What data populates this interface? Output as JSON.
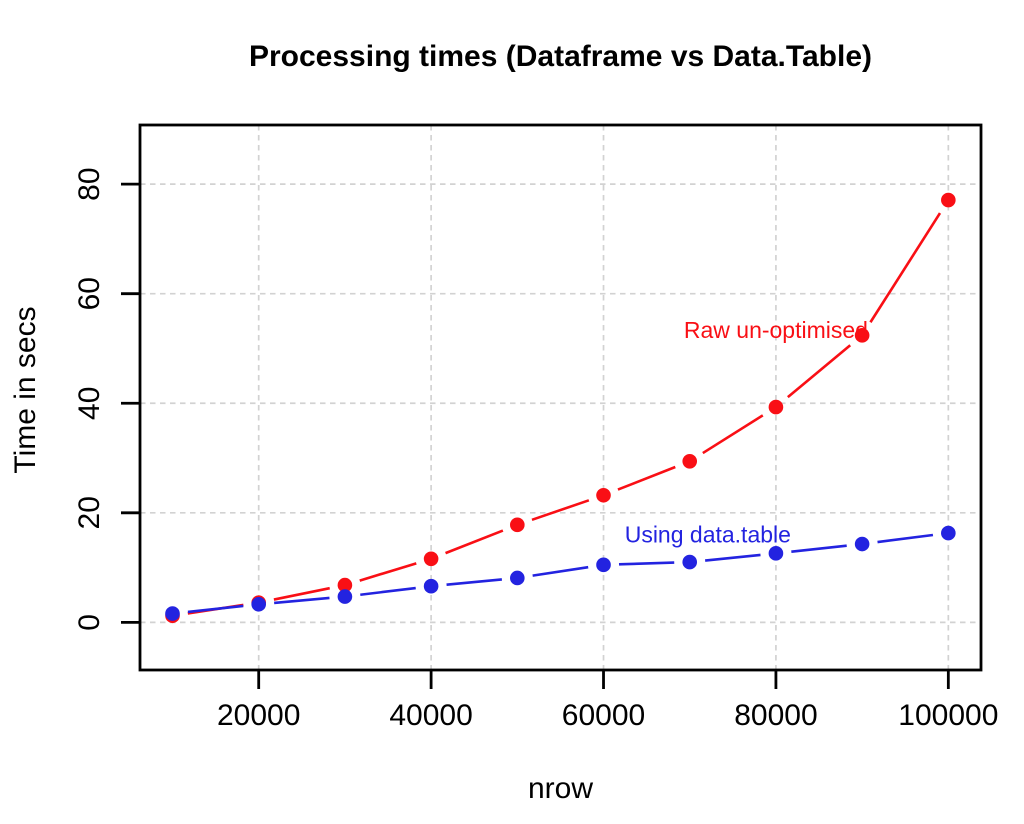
{
  "chart_data": {
    "type": "line",
    "title": "Processing times (Dataframe vs Data.Table)",
    "xlabel": "nrow",
    "ylabel": "Time in secs",
    "x": [
      10000,
      20000,
      30000,
      40000,
      50000,
      60000,
      70000,
      80000,
      90000,
      100000
    ],
    "series": [
      {
        "name": "Raw un-optimised",
        "color": "#f90f15",
        "values": [
          1.2,
          3.6,
          6.8,
          11.6,
          17.8,
          23.2,
          29.4,
          39.3,
          52.4,
          77.1
        ]
      },
      {
        "name": "Using data.table",
        "color": "#2323e0",
        "values": [
          1.6,
          3.3,
          4.7,
          6.6,
          8.1,
          10.5,
          11.0,
          12.6,
          14.3,
          16.3
        ]
      }
    ],
    "annotations": [
      {
        "text": "Raw un-optimised",
        "x": 80000,
        "y": 53.4,
        "color": "#f90f15"
      },
      {
        "text": "Using data.table",
        "x": 72100,
        "y": 16.0,
        "color": "#2323e0"
      }
    ],
    "x_ticks": [
      "20000",
      "40000",
      "60000",
      "80000",
      "100000"
    ],
    "x_tick_values": [
      20000,
      40000,
      60000,
      80000,
      100000
    ],
    "y_ticks": [
      "0",
      "20",
      "40",
      "60",
      "80"
    ],
    "y_tick_values": [
      0,
      20,
      40,
      60,
      80
    ],
    "x_domain": [
      6230,
      103790
    ],
    "y_domain": [
      -8.7,
      90.8
    ],
    "grid": "dashed",
    "grid_color": "#d2d2d2",
    "frame_color": "#000000",
    "tick_color": "#000000",
    "background": "#ffffff",
    "legend_position": "inline-labels",
    "marker": "filled-circle",
    "line_style": "segments-with-gaps"
  }
}
